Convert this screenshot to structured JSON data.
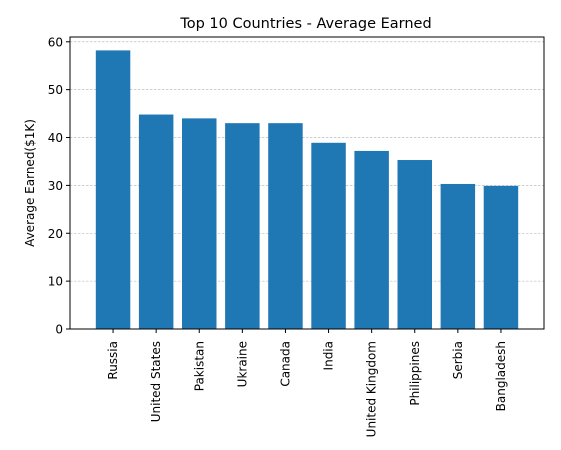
{
  "chart_data": {
    "type": "bar",
    "title": "Top 10 Countries - Average Earned",
    "xlabel": "",
    "ylabel": "Average Earned($1K)",
    "categories": [
      "Russia",
      "United States",
      "Pakistan",
      "Ukraine",
      "Canada",
      "India",
      "United Kingdom",
      "Philippines",
      "Serbia",
      "Bangladesh"
    ],
    "values": [
      58.2,
      44.8,
      44.0,
      43.0,
      43.0,
      38.9,
      37.2,
      35.3,
      30.3,
      29.9
    ],
    "ylim": [
      0,
      61
    ],
    "yticks": [
      0,
      10,
      20,
      30,
      40,
      50,
      60
    ],
    "grid": true,
    "bar_color": "#1f77b4",
    "grid_color": "#b0b0b0"
  }
}
